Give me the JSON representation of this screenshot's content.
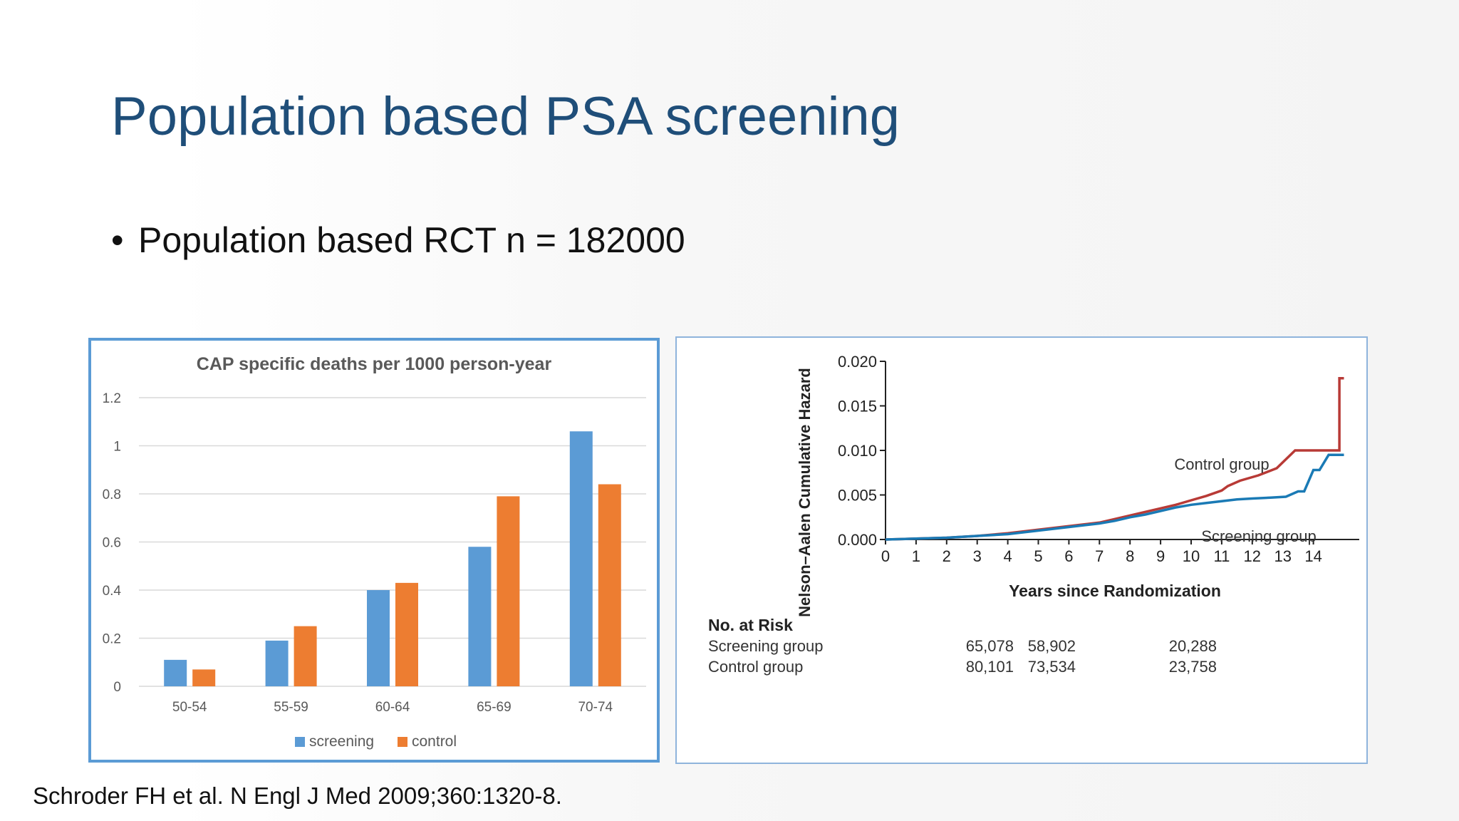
{
  "slide": {
    "title": "Population based PSA screening",
    "bullet": "Population based RCT n = 182000",
    "citation": "Schroder FH et al. N Engl J Med 2009;360:1320-8."
  },
  "colors": {
    "screening": "#5b9bd5",
    "control": "#ed7d31",
    "title": "#1f4e79",
    "curve_control": "#b83a36",
    "curve_screening": "#1a7ab5"
  },
  "chart_data": [
    {
      "type": "bar",
      "title": "CAP specific deaths per 1000 person-year",
      "categories": [
        "50-54",
        "55-59",
        "60-64",
        "65-69",
        "70-74"
      ],
      "series": [
        {
          "name": "screening",
          "values": [
            0.11,
            0.19,
            0.4,
            0.58,
            1.06
          ]
        },
        {
          "name": "control",
          "values": [
            0.07,
            0.25,
            0.43,
            0.79,
            0.84
          ]
        }
      ],
      "ylim": [
        0,
        1.2
      ],
      "yticks": [
        "0",
        "0.2",
        "0.4",
        "0.6",
        "0.8",
        "1",
        "1.2"
      ],
      "legend": "bottom",
      "xlabel": "",
      "ylabel": ""
    },
    {
      "type": "line",
      "ylabel": "Nelson–Aalen Cumulative Hazard",
      "xlabel": "Years since Randomization",
      "xlim": [
        0,
        15
      ],
      "ylim": [
        0,
        0.02
      ],
      "xticks": [
        "0",
        "1",
        "2",
        "3",
        "4",
        "5",
        "6",
        "7",
        "8",
        "9",
        "10",
        "11",
        "12",
        "13",
        "14"
      ],
      "yticks": [
        "0.000",
        "0.005",
        "0.010",
        "0.015",
        "0.020"
      ],
      "series": [
        {
          "name": "Control group",
          "x": [
            0,
            1,
            2,
            3,
            4,
            5,
            6,
            7,
            7.5,
            8,
            8.5,
            9,
            9.5,
            10,
            10.5,
            11,
            11.2,
            11.6,
            12.2,
            12.8,
            13.1,
            13.4,
            13.8,
            14.5,
            14.85,
            14.85,
            15
          ],
          "y": [
            0,
            0.0001,
            0.0002,
            0.0004,
            0.0007,
            0.0011,
            0.0015,
            0.0019,
            0.0023,
            0.0027,
            0.0031,
            0.0035,
            0.0039,
            0.0044,
            0.0049,
            0.0055,
            0.006,
            0.0066,
            0.0072,
            0.008,
            0.009,
            0.01,
            0.01,
            0.01,
            0.01,
            0.0181,
            0.0181
          ]
        },
        {
          "name": "Screening group",
          "x": [
            0,
            1,
            2,
            3,
            4,
            5,
            6,
            7,
            7.5,
            8,
            8.5,
            9,
            9.5,
            10,
            10.5,
            11,
            11.5,
            12,
            12.6,
            13.1,
            13.5,
            13.7,
            14.0,
            14.2,
            14.5,
            15
          ],
          "y": [
            0,
            0.0001,
            0.0002,
            0.0004,
            0.0006,
            0.001,
            0.0014,
            0.0018,
            0.0021,
            0.0025,
            0.0028,
            0.0032,
            0.0036,
            0.0039,
            0.0041,
            0.0043,
            0.0045,
            0.0046,
            0.0047,
            0.0048,
            0.0054,
            0.0054,
            0.0078,
            0.0078,
            0.0095,
            0.0095
          ]
        }
      ],
      "annotations": [
        "Control group",
        "Screening group"
      ],
      "risk_table": {
        "header": "No. at Risk",
        "rows": [
          {
            "label": "Screening group",
            "values": [
              "65,078",
              "58,902",
              "20,288"
            ]
          },
          {
            "label": "Control group",
            "values": [
              "80,101",
              "73,534",
              "23,758"
            ]
          }
        ]
      }
    }
  ]
}
